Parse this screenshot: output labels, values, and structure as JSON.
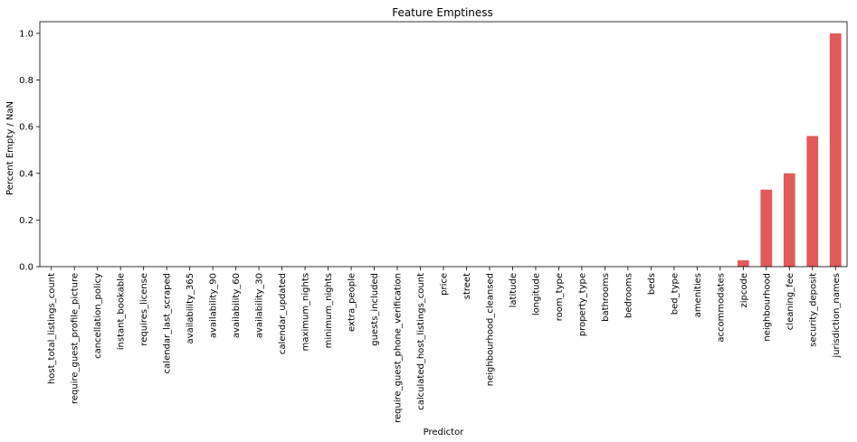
{
  "chart_data": {
    "type": "bar",
    "title": "Feature Emptiness",
    "xlabel": "Predictor",
    "ylabel": "Percent Empty / NaN",
    "ylim": [
      0,
      1.05
    ],
    "yticks": [
      "0.0",
      "0.2",
      "0.4",
      "0.6",
      "0.8",
      "1.0"
    ],
    "grid": false,
    "bar_color": "#e05a5a",
    "categories": [
      "host_total_listings_count",
      "require_guest_profile_picture",
      "cancellation_policy",
      "instant_bookable",
      "requires_license",
      "calendar_last_scraped",
      "availability_365",
      "availability_90",
      "availability_60",
      "availability_30",
      "calendar_updated",
      "maximum_nights",
      "minimum_nights",
      "extra_people",
      "guests_included",
      "require_guest_phone_verification",
      "calculated_host_listings_count",
      "price",
      "street",
      "neighbourhood_cleansed",
      "latitude",
      "longitude",
      "room_type",
      "property_type",
      "bathrooms",
      "bedrooms",
      "beds",
      "bed_type",
      "amenities",
      "accommodates",
      "zipcode",
      "neighbourhood",
      "cleaning_fee",
      "security_deposit",
      "jurisdiction_names"
    ],
    "values": [
      0,
      0,
      0,
      0,
      0,
      0,
      0,
      0,
      0,
      0,
      0,
      0,
      0,
      0,
      0,
      0,
      0,
      0,
      0,
      0,
      0,
      0,
      0,
      0,
      0,
      0,
      0,
      0,
      0,
      0,
      0.027,
      0.33,
      0.4,
      0.56,
      1.0
    ]
  }
}
